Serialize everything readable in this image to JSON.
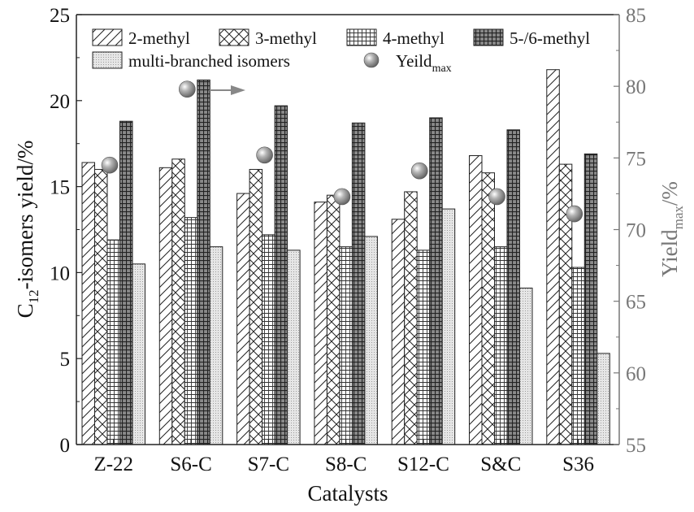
{
  "chart_data": {
    "type": "bar",
    "title": "",
    "xlabel": "Catalysts",
    "ylabel": {
      "main": "C",
      "sub": "12",
      "rest": "-isomers yield/%"
    },
    "y2label": {
      "main": "Yield",
      "sub": "max",
      "rest": "/%"
    },
    "ylim": [
      0,
      25
    ],
    "yticks": [
      "0",
      "5",
      "10",
      "15",
      "20",
      "25"
    ],
    "y2lim": [
      55,
      85
    ],
    "y2ticks": [
      "55",
      "60",
      "65",
      "70",
      "75",
      "80",
      "85"
    ],
    "categories": [
      "Z-22",
      "S6-C",
      "S7-C",
      "S8-C",
      "S12-C",
      "S&C",
      "S36"
    ],
    "series": [
      {
        "name": "2-methyl",
        "pattern": "diagonal",
        "values": [
          16.4,
          16.1,
          14.6,
          14.1,
          13.1,
          16.8,
          21.8
        ]
      },
      {
        "name": "3-methyl",
        "pattern": "crosshatch",
        "values": [
          16.0,
          16.6,
          16.0,
          14.5,
          14.7,
          15.8,
          16.3
        ]
      },
      {
        "name": "4-methyl",
        "pattern": "grid",
        "values": [
          11.9,
          13.2,
          12.2,
          11.5,
          11.3,
          11.5,
          10.3
        ]
      },
      {
        "name": "5-/6-methyl",
        "pattern": "darkgrid",
        "values": [
          18.8,
          21.2,
          19.7,
          18.7,
          19.0,
          18.3,
          16.9
        ]
      },
      {
        "name": "multi-branched isomers",
        "pattern": "dots",
        "values": [
          10.5,
          11.5,
          11.3,
          12.1,
          13.7,
          9.1,
          5.3
        ]
      }
    ],
    "yield_series": {
      "legend": {
        "main": "Yeild",
        "sub": "max"
      },
      "axis": "right",
      "values": [
        74.5,
        79.8,
        75.2,
        72.3,
        74.1,
        72.3,
        71.1
      ]
    },
    "legend_position": "top-left",
    "annotation": "arrow pointing to right axis"
  },
  "colors": {
    "axis": "#222222",
    "right_axis": "#777777",
    "bar_stroke": "#222222",
    "dark_bar": "#444444",
    "marker": "#8a8a8a"
  }
}
